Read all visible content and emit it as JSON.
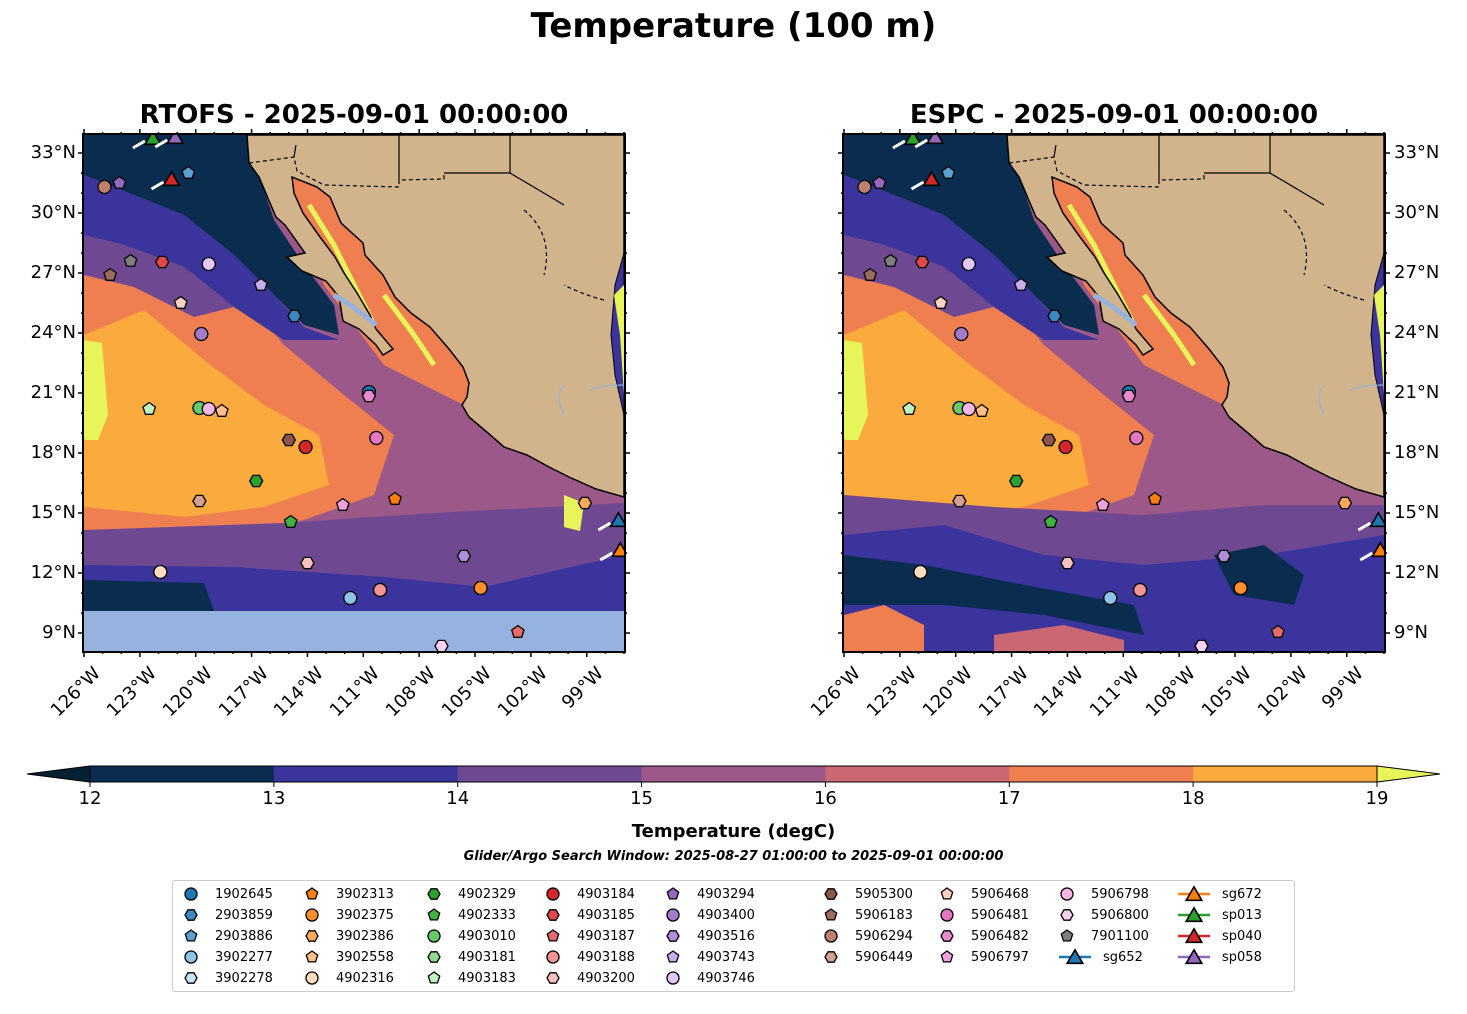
{
  "title": "Temperature (100 m)",
  "panels": [
    {
      "title": "RTOFS - 2025-09-01 00:00:00"
    },
    {
      "title": "ESPC - 2025-09-01 00:00:00"
    }
  ],
  "axes": {
    "lon_ticks": [
      "126°W",
      "123°W",
      "120°W",
      "117°W",
      "114°W",
      "111°W",
      "108°W",
      "105°W",
      "102°W",
      "99°W"
    ],
    "lon_values": [
      -126,
      -123,
      -120,
      -117,
      -114,
      -111,
      -108,
      -105,
      -102,
      -99
    ],
    "lat_ticks": [
      "33°N",
      "30°N",
      "27°N",
      "24°N",
      "21°N",
      "18°N",
      "15°N",
      "12°N",
      "9°N"
    ],
    "lat_values": [
      33,
      30,
      27,
      24,
      21,
      18,
      15,
      12,
      9
    ],
    "lon_range": [
      -126,
      -97
    ],
    "lat_range": [
      8.1,
      33.9
    ]
  },
  "colorbar": {
    "title": "Temperature (degC)",
    "ticks": [
      "12",
      "13",
      "14",
      "15",
      "16",
      "17",
      "18",
      "19"
    ],
    "levels": [
      12,
      13,
      14,
      15,
      16,
      17,
      18,
      19
    ],
    "colors": [
      "#0a2d4f",
      "#3a349c",
      "#6e4992",
      "#9b5888",
      "#cb6673",
      "#ef7f51",
      "#fbaa3e"
    ],
    "under_color": "#052233",
    "over_color": "#e8f55a"
  },
  "search_window": "Glider/Argo Search Window: 2025-08-27 01:00:00 to 2025-09-01 00:00:00",
  "legend": {
    "columns": [
      [
        {
          "id": "1902645",
          "shape": "circle",
          "color": "#1f77b4"
        },
        {
          "id": "2903859",
          "shape": "hexagon",
          "color": "#3b88c2"
        },
        {
          "id": "2903886",
          "shape": "pentagon",
          "color": "#5aa0d0"
        },
        {
          "id": "3902277",
          "shape": "circle",
          "color": "#8ec4e8"
        },
        {
          "id": "3902278",
          "shape": "hexagon",
          "color": "#c6e3f7"
        }
      ],
      [
        {
          "id": "3902313",
          "shape": "pentagon",
          "color": "#ff7f0e"
        },
        {
          "id": "3902375",
          "shape": "circle",
          "color": "#ff8f2e"
        },
        {
          "id": "3902386",
          "shape": "hexagon",
          "color": "#ffa75a"
        },
        {
          "id": "3902558",
          "shape": "pentagon",
          "color": "#ffbf8a"
        },
        {
          "id": "4902316",
          "shape": "circle",
          "color": "#ffdcbf"
        }
      ],
      [
        {
          "id": "4902329",
          "shape": "hexagon",
          "color": "#2ca02c"
        },
        {
          "id": "4902333",
          "shape": "pentagon",
          "color": "#42b342"
        },
        {
          "id": "4903010",
          "shape": "circle",
          "color": "#66c866"
        },
        {
          "id": "4903181",
          "shape": "hexagon",
          "color": "#8fdb8f"
        },
        {
          "id": "4903183",
          "shape": "pentagon",
          "color": "#c0f5c0"
        }
      ],
      [
        {
          "id": "4903184",
          "shape": "circle",
          "color": "#d62728"
        },
        {
          "id": "4903185",
          "shape": "hexagon",
          "color": "#e04848"
        },
        {
          "id": "4903187",
          "shape": "pentagon",
          "color": "#e86a6a"
        },
        {
          "id": "4903188",
          "shape": "circle",
          "color": "#f09494"
        },
        {
          "id": "4903200",
          "shape": "hexagon",
          "color": "#fbc0c0"
        }
      ],
      [
        {
          "id": "4903294",
          "shape": "pentagon",
          "color": "#9467bd"
        },
        {
          "id": "4903400",
          "shape": "circle",
          "color": "#a27ccc"
        },
        {
          "id": "4903516",
          "shape": "hexagon",
          "color": "#b08fda"
        },
        {
          "id": "4903743",
          "shape": "pentagon",
          "color": "#c8acec"
        },
        {
          "id": "4903746",
          "shape": "circle",
          "color": "#e1c8f9"
        }
      ],
      [
        {
          "id": "5905300",
          "shape": "hexagon",
          "color": "#8c564b"
        },
        {
          "id": "5906183",
          "shape": "pentagon",
          "color": "#a06a5e"
        },
        {
          "id": "5906294",
          "shape": "circle",
          "color": "#c08070"
        },
        {
          "id": "5906449",
          "shape": "hexagon",
          "color": "#d6a090"
        }
      ],
      [
        {
          "id": "5906468",
          "shape": "pentagon",
          "color": "#fdd0c0"
        },
        {
          "id": "5906481",
          "shape": "circle",
          "color": "#e377c2"
        },
        {
          "id": "5906482",
          "shape": "hexagon",
          "color": "#e88ad0"
        },
        {
          "id": "5906797",
          "shape": "pentagon",
          "color": "#f0a0dc"
        }
      ],
      [
        {
          "id": "5906798",
          "shape": "circle",
          "color": "#f7b6e6"
        },
        {
          "id": "5906800",
          "shape": "hexagon",
          "color": "#fdd0f0"
        },
        {
          "id": "7901100",
          "shape": "pentagon",
          "color": "#7f7f7f"
        },
        {
          "id": "sg652",
          "shape": "triangle",
          "color": "#1f77b4",
          "line": true
        }
      ],
      [
        {
          "id": "sg672",
          "shape": "triangle",
          "color": "#ff7f0e",
          "line": true
        },
        {
          "id": "sp013",
          "shape": "triangle",
          "color": "#2ca02c",
          "line": true
        },
        {
          "id": "sp040",
          "shape": "triangle",
          "color": "#d62728",
          "line": true
        },
        {
          "id": "sp058",
          "shape": "triangle",
          "color": "#9467bd",
          "line": true
        }
      ]
    ]
  },
  "markers": [
    {
      "id": "5906294",
      "lon": -124.9,
      "lat": 31.3
    },
    {
      "id": "4903294",
      "lon": -124.1,
      "lat": 31.5
    },
    {
      "id": "sp013",
      "lon": -122.3,
      "lat": 33.75
    },
    {
      "id": "sp058",
      "lon": -121.1,
      "lat": 33.8
    },
    {
      "id": "sp040",
      "lon": -121.3,
      "lat": 31.7
    },
    {
      "id": "2903886",
      "lon": -120.4,
      "lat": 32.0
    },
    {
      "id": "5906183",
      "lon": -124.6,
      "lat": 26.9
    },
    {
      "id": "7901100",
      "lon": -123.5,
      "lat": 27.6
    },
    {
      "id": "4903185",
      "lon": -121.8,
      "lat": 27.55
    },
    {
      "id": "4903746",
      "lon": -119.3,
      "lat": 27.45
    },
    {
      "id": "5906468",
      "lon": -120.8,
      "lat": 25.5
    },
    {
      "id": "4903743",
      "lon": -116.5,
      "lat": 26.4
    },
    {
      "id": "4903400",
      "lon": -119.7,
      "lat": 23.95
    },
    {
      "id": "2903859",
      "lon": -114.7,
      "lat": 24.85
    },
    {
      "id": "4903183",
      "lon": -122.5,
      "lat": 20.2
    },
    {
      "id": "4903010",
      "lon": -119.8,
      "lat": 20.25
    },
    {
      "id": "5906798",
      "lon": -119.3,
      "lat": 20.2
    },
    {
      "id": "3902558",
      "lon": -118.6,
      "lat": 20.1
    },
    {
      "id": "1902645",
      "lon": -110.7,
      "lat": 21.05
    },
    {
      "id": "5906482",
      "lon": -110.7,
      "lat": 20.85
    },
    {
      "id": "5905300",
      "lon": -115.0,
      "lat": 18.65
    },
    {
      "id": "4903184",
      "lon": -114.1,
      "lat": 18.3
    },
    {
      "id": "5906481",
      "lon": -110.3,
      "lat": 18.75
    },
    {
      "id": "4902329",
      "lon": -116.75,
      "lat": 16.6
    },
    {
      "id": "3902313",
      "lon": -109.3,
      "lat": 15.7
    },
    {
      "id": "5906449",
      "lon": -119.8,
      "lat": 15.6
    },
    {
      "id": "4902333",
      "lon": -114.9,
      "lat": 14.55
    },
    {
      "id": "5906797",
      "lon": -112.1,
      "lat": 15.4
    },
    {
      "id": "4903200",
      "lon": -114.0,
      "lat": 12.5
    },
    {
      "id": "4902316",
      "lon": -121.9,
      "lat": 12.05
    },
    {
      "id": "3902277",
      "lon": -111.7,
      "lat": 10.75
    },
    {
      "id": "4903188",
      "lon": -110.1,
      "lat": 11.15
    },
    {
      "id": "4903516",
      "lon": -105.6,
      "lat": 12.85
    },
    {
      "id": "3902375",
      "lon": -104.7,
      "lat": 11.25
    },
    {
      "id": "3902386",
      "lon": -99.1,
      "lat": 15.5
    },
    {
      "id": "sg652",
      "lon": -97.3,
      "lat": 14.65
    },
    {
      "id": "sg672",
      "lon": -97.2,
      "lat": 13.15
    },
    {
      "id": "5906800",
      "lon": -106.8,
      "lat": 8.35
    },
    {
      "id": "4903187",
      "lon": -102.7,
      "lat": 9.05
    }
  ],
  "colors": {
    "land": "#d2b48c",
    "nodata": "#95b3de",
    "coast": "#000000"
  }
}
